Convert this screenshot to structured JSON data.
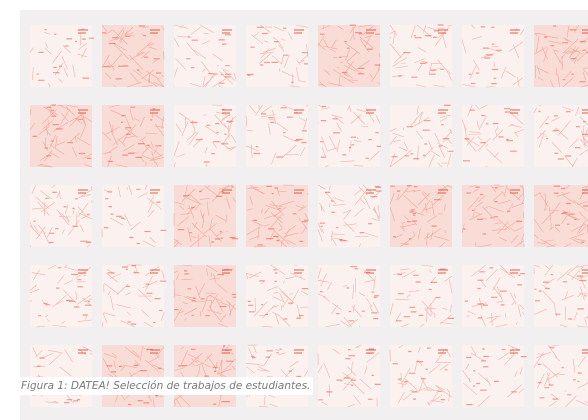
{
  "figure": {
    "caption": "Figura 1: DATEA! Selección de trabajos de estudiantes."
  }
}
